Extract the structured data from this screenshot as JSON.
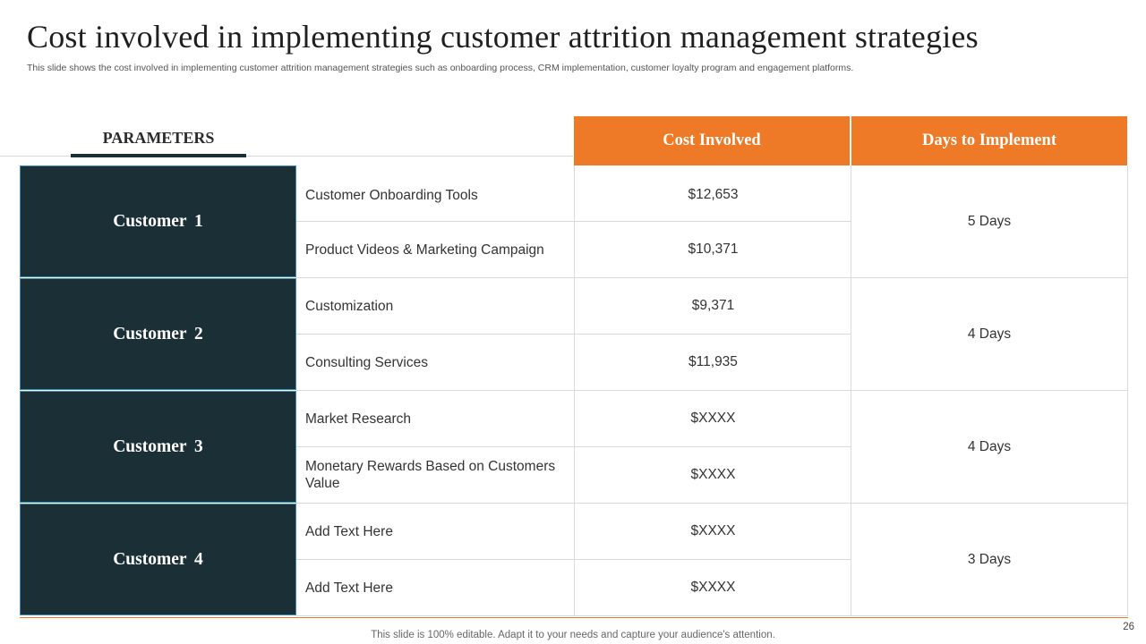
{
  "slide": {
    "title": "Cost involved in implementing customer attrition management strategies",
    "subtitle": "This slide shows the cost involved in implementing customer attrition management strategies such as onboarding process, CRM implementation, customer loyalty program and engagement platforms.",
    "footer": "This slide is 100% editable. Adapt it to your needs and capture your audience's attention.",
    "page_number": "26"
  },
  "table": {
    "parameters_label": "PARAMETERS",
    "col_cost": "Cost Involved",
    "col_days": "Days to Implement",
    "groups": [
      {
        "customer": "Customer 1",
        "days": "5 Days",
        "items": [
          {
            "name": "Customer Onboarding Tools",
            "cost": "$12,653"
          },
          {
            "name": "Product Videos & Marketing Campaign",
            "cost": "$10,371"
          }
        ]
      },
      {
        "customer": "Customer 2",
        "days": "4 Days",
        "items": [
          {
            "name": "Customization",
            "cost": "$9,371"
          },
          {
            "name": "Consulting Services",
            "cost": "$11,935"
          }
        ]
      },
      {
        "customer": "Customer 3",
        "days": "4 Days",
        "items": [
          {
            "name": "Market Research",
            "cost": "$XXXX"
          },
          {
            "name": "Monetary Rewards Based on Customers Value",
            "cost": "$XXXX"
          }
        ]
      },
      {
        "customer": "Customer 4",
        "days": "3 Days",
        "items": [
          {
            "name": "Add Text Here",
            "cost": "$XXXX"
          },
          {
            "name": "Add Text Here",
            "cost": "$XXXX"
          }
        ]
      }
    ]
  },
  "colors": {
    "accent": "#ee7a28",
    "dark": "#1b2f36",
    "customer_border": "#3d8fb0"
  }
}
